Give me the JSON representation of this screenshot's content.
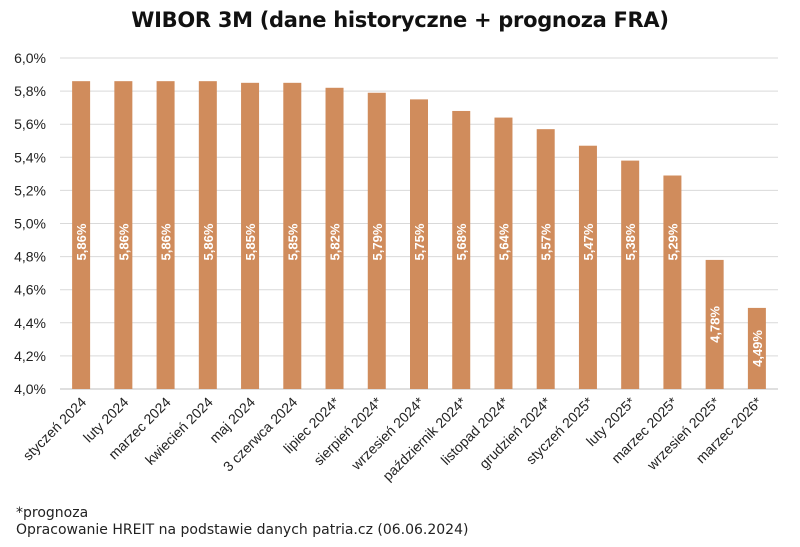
{
  "chart_data": {
    "type": "bar",
    "title": "WIBOR 3M (dane historyczne + prognoza FRA)",
    "xlabel": "",
    "ylabel": "",
    "ylim": [
      4.0,
      6.0
    ],
    "yticks": [
      "4,0%",
      "4,2%",
      "4,4%",
      "4,6%",
      "4,8%",
      "5,0%",
      "5,2%",
      "5,4%",
      "5,6%",
      "5,8%",
      "6,0%"
    ],
    "grid": true,
    "legend": "none",
    "bar_color": "#D08C5C",
    "categories": [
      "styczeń 2024",
      "luty 2024",
      "marzec 2024",
      "kwiecień 2024",
      "maj 2024",
      "3 czerwca 2024",
      "lipiec 2024*",
      "sierpień 2024*",
      "wrzesień 2024*",
      "październik 2024*",
      "listopad 2024*",
      "grudzień 2024*",
      "styczeń 2025*",
      "luty 2025*",
      "marzec 2025*",
      "wrzesień 2025*",
      "marzec 2026*"
    ],
    "values": [
      5.86,
      5.86,
      5.86,
      5.86,
      5.85,
      5.85,
      5.82,
      5.79,
      5.75,
      5.68,
      5.64,
      5.57,
      5.47,
      5.38,
      5.29,
      4.78,
      4.49
    ],
    "data_labels": [
      "5,86%",
      "5,86%",
      "5,86%",
      "5,86%",
      "5,85%",
      "5,85%",
      "5,82%",
      "5,79%",
      "5,75%",
      "5,68%",
      "5,64%",
      "5,57%",
      "5,47%",
      "5,38%",
      "5,29%",
      "4,78%",
      "4,49%"
    ]
  },
  "footer": {
    "note": "*prognoza",
    "source": "Opracowanie HREIT na podstawie danych patria.cz (06.06.2024)"
  }
}
